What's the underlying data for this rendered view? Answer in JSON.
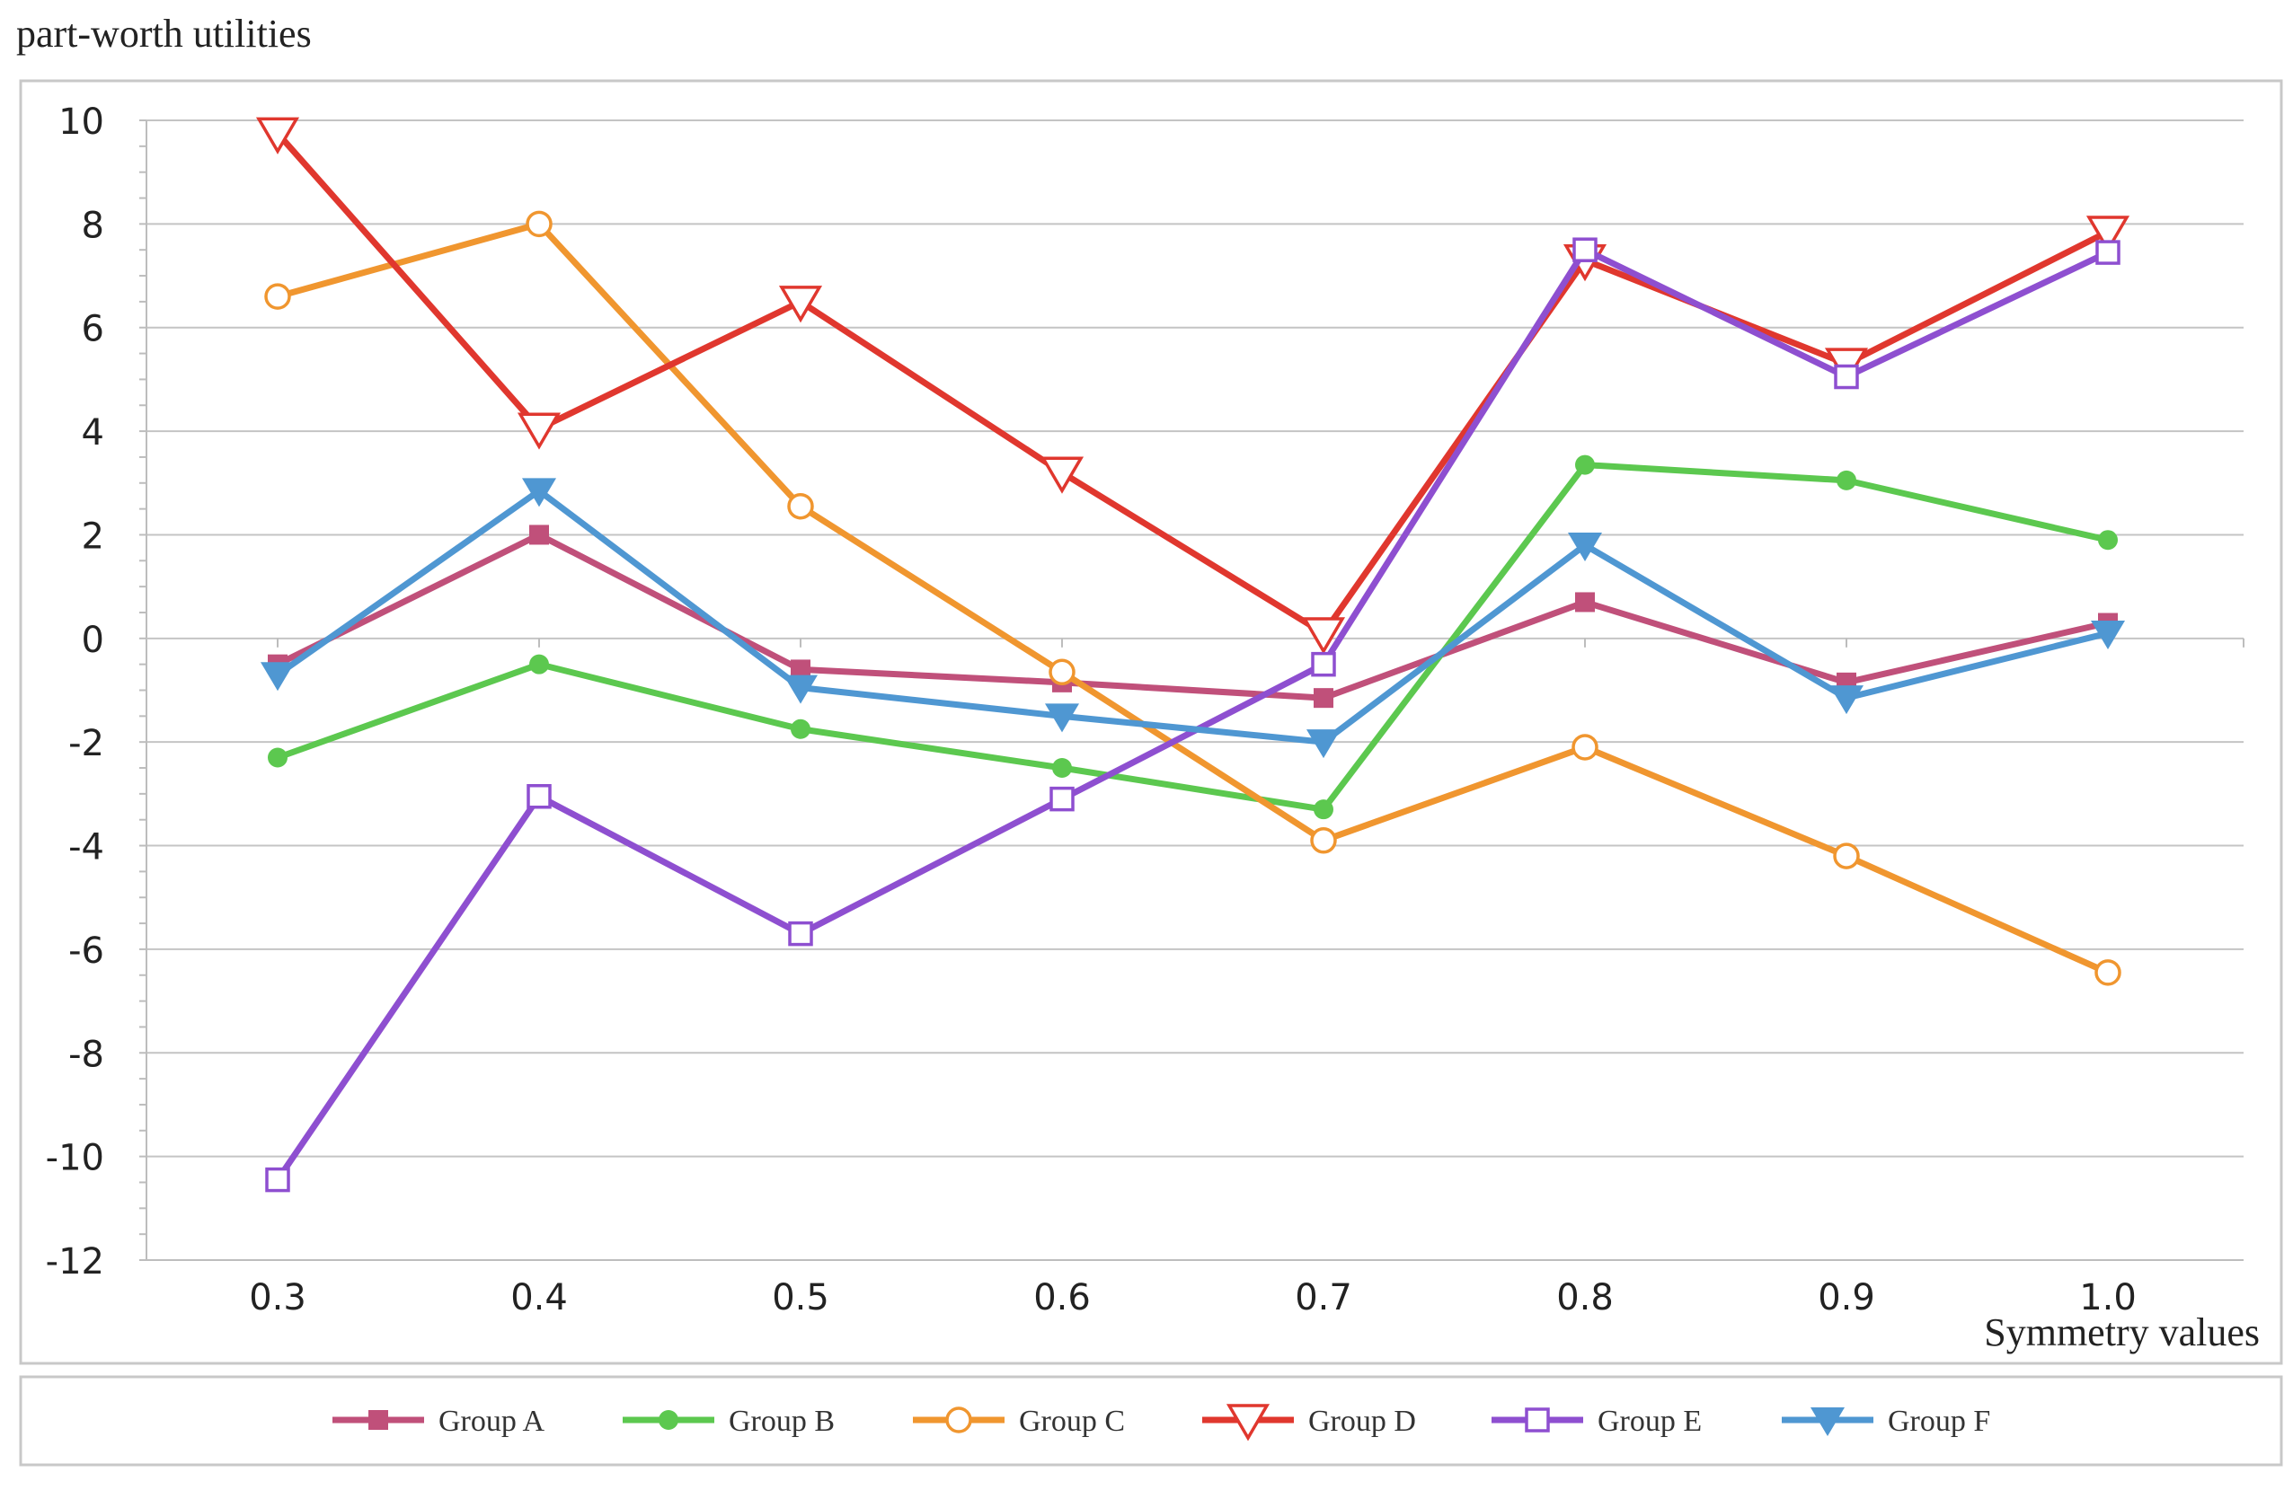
{
  "chart_data": {
    "type": "line",
    "ylabel": "part-worth utilities",
    "xlabel": "Symmetry values",
    "categories": [
      "0.3",
      "0.4",
      "0.5",
      "0.6",
      "0.7",
      "0.8",
      "0.9",
      "1.0"
    ],
    "ylim": [
      -12,
      10
    ],
    "yticks": [
      "10",
      "8",
      "6",
      "4",
      "2",
      "0",
      "-2",
      "-4",
      "-6",
      "-8",
      "-10",
      "-12"
    ],
    "ytick_values": [
      10,
      8,
      6,
      4,
      2,
      0,
      -2,
      -4,
      -6,
      -8,
      -10,
      -12
    ],
    "grid": true,
    "legend_position": "bottom",
    "series": [
      {
        "name": "Group A",
        "color": "#c0507a",
        "marker": "square-filled",
        "values": [
          -0.5,
          2.0,
          -0.6,
          -0.85,
          -1.15,
          0.7,
          -0.85,
          0.3
        ]
      },
      {
        "name": "Group B",
        "color": "#5cc84f",
        "marker": "circle-filled",
        "values": [
          -2.3,
          -0.5,
          -1.75,
          -2.5,
          -3.3,
          3.35,
          3.05,
          1.9
        ]
      },
      {
        "name": "Group C",
        "color": "#f0962f",
        "marker": "circle-open",
        "values": [
          6.6,
          8.0,
          2.55,
          -0.65,
          -3.9,
          -2.1,
          -4.2,
          -6.45
        ]
      },
      {
        "name": "Group D",
        "color": "#e0372e",
        "marker": "triangle-down-open",
        "values": [
          9.75,
          4.05,
          6.5,
          3.2,
          0.1,
          7.3,
          5.3,
          7.85
        ]
      },
      {
        "name": "Group E",
        "color": "#8e4fd0",
        "marker": "square-open",
        "values": [
          -10.45,
          -3.05,
          -5.7,
          -3.1,
          -0.5,
          7.5,
          5.05,
          7.45
        ]
      },
      {
        "name": "Group F",
        "color": "#4f97d2",
        "marker": "triangle-down-filled",
        "values": [
          -0.7,
          2.85,
          -0.95,
          -1.5,
          -2.0,
          1.8,
          -1.15,
          0.1
        ]
      }
    ]
  }
}
